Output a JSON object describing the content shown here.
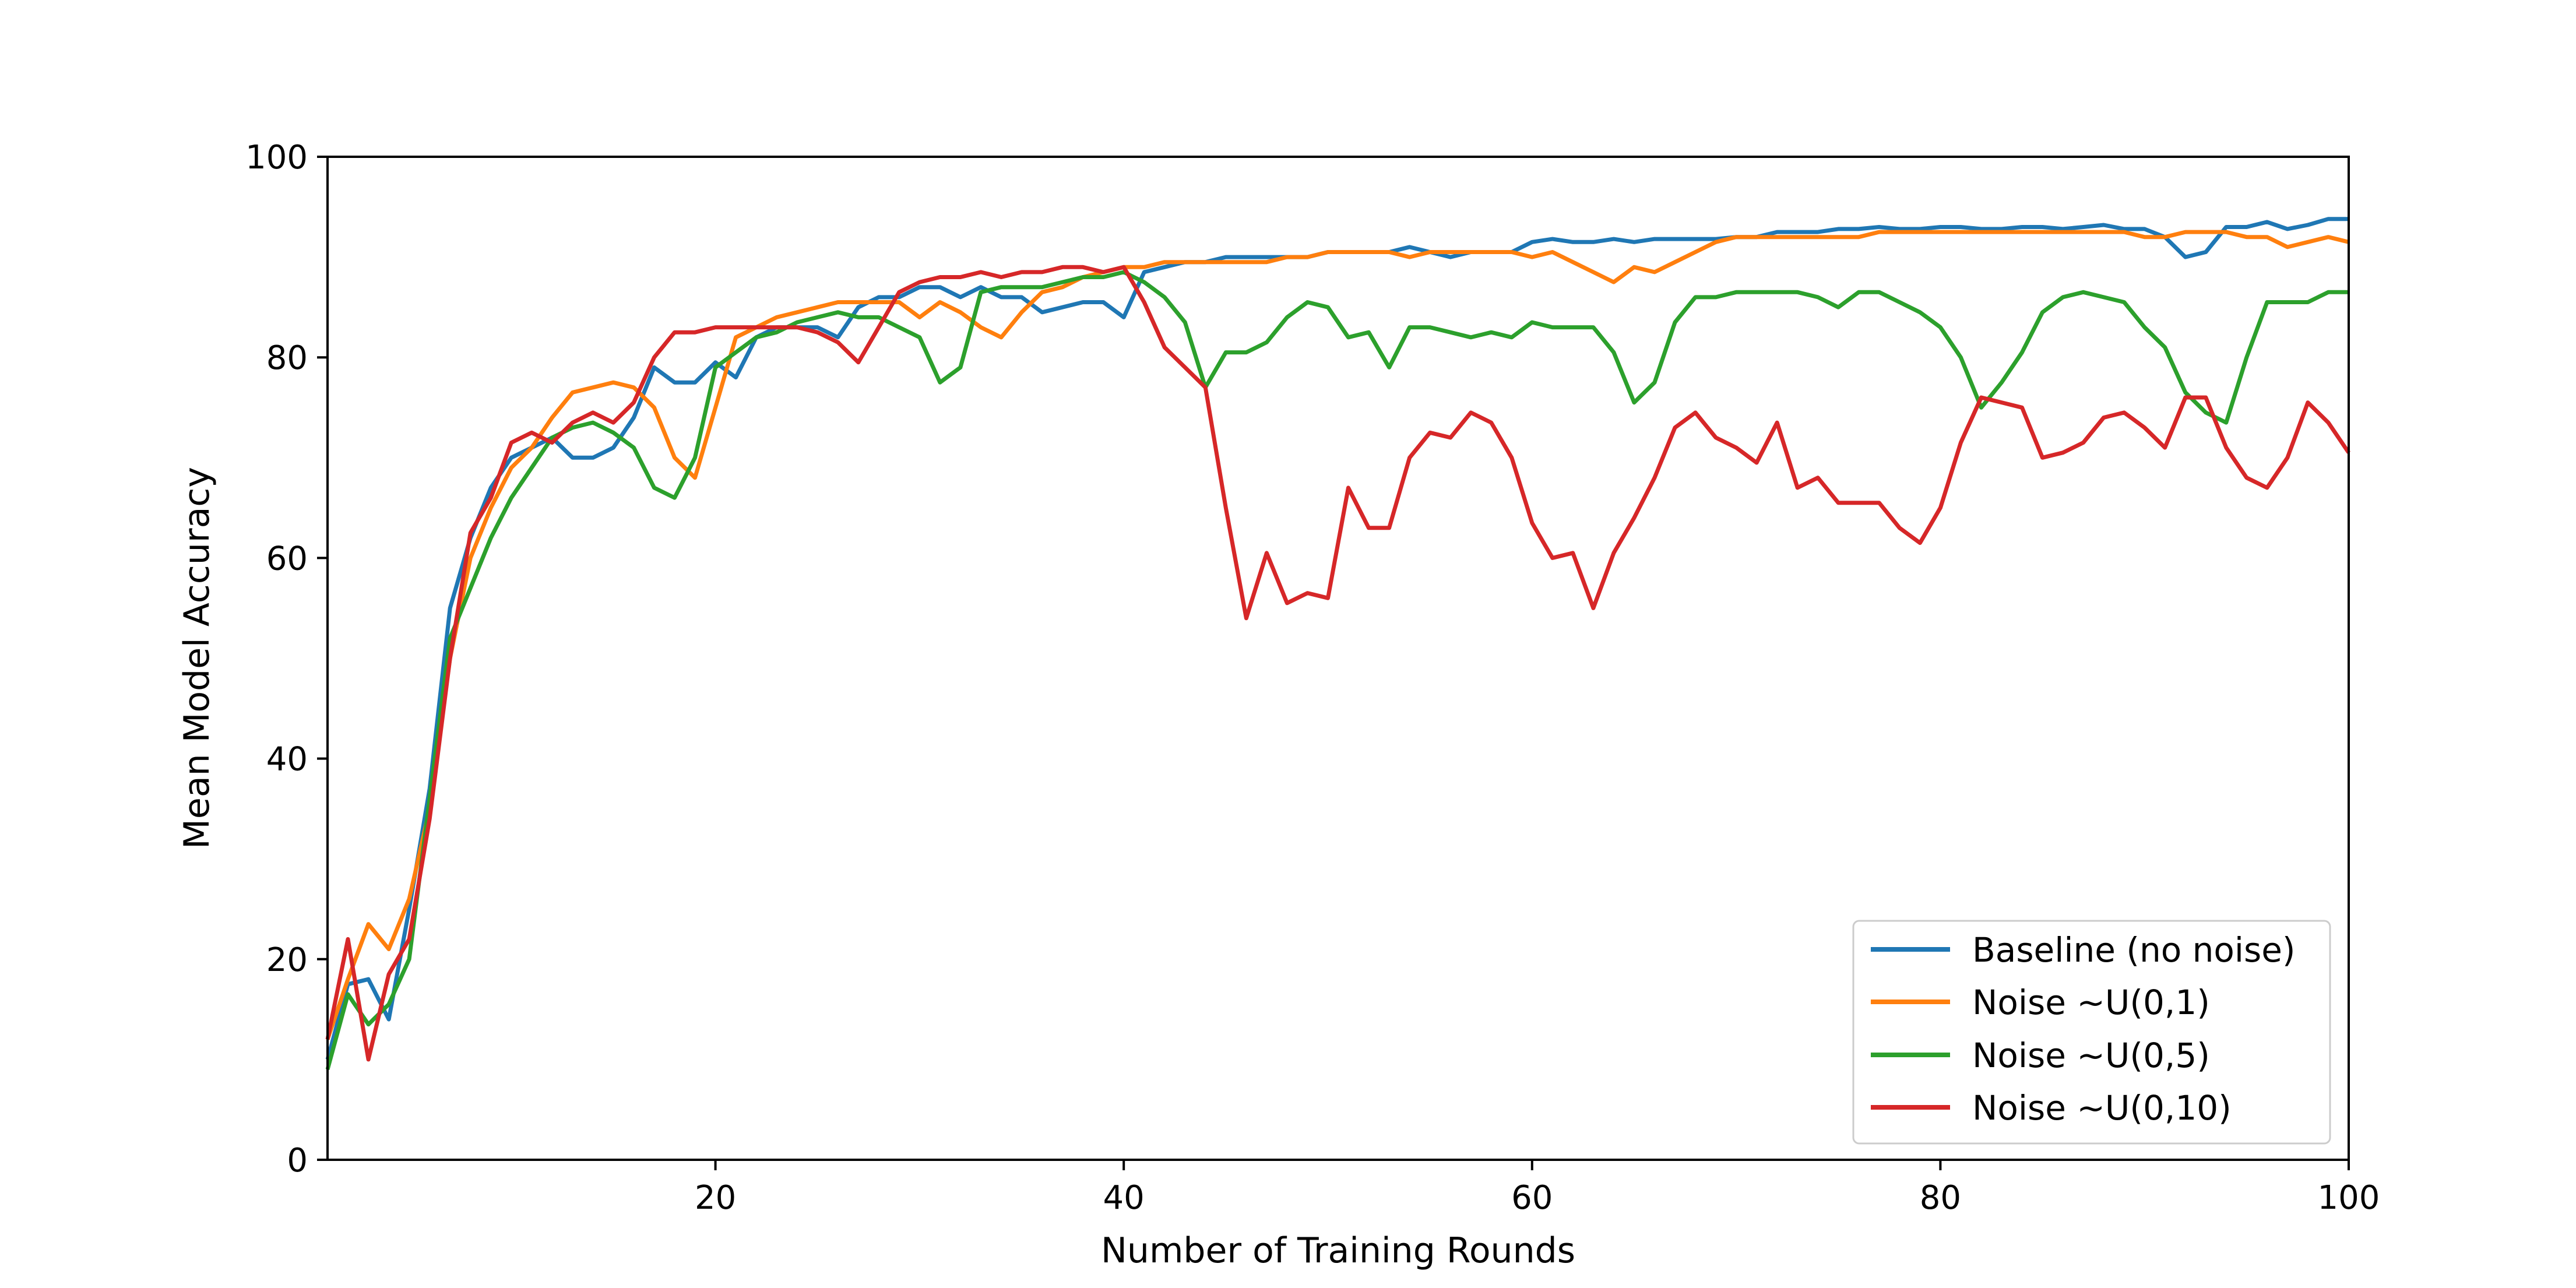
{
  "chart_data": {
    "type": "line",
    "title": "",
    "xlabel": "Number of Training Rounds",
    "ylabel": "Mean Model Accuracy",
    "xlim": [
      1,
      100
    ],
    "ylim": [
      0,
      100
    ],
    "xticks": [
      20,
      40,
      60,
      80,
      100
    ],
    "yticks": [
      0,
      20,
      40,
      60,
      80,
      100
    ],
    "grid": false,
    "legend_position": "lower-right",
    "x": [
      1,
      2,
      3,
      4,
      5,
      6,
      7,
      8,
      9,
      10,
      11,
      12,
      13,
      14,
      15,
      16,
      17,
      18,
      19,
      20,
      21,
      22,
      23,
      24,
      25,
      26,
      27,
      28,
      29,
      30,
      31,
      32,
      33,
      34,
      35,
      36,
      37,
      38,
      39,
      40,
      41,
      42,
      43,
      44,
      45,
      46,
      47,
      48,
      49,
      50,
      51,
      52,
      53,
      54,
      55,
      56,
      57,
      58,
      59,
      60,
      61,
      62,
      63,
      64,
      65,
      66,
      67,
      68,
      69,
      70,
      71,
      72,
      73,
      74,
      75,
      76,
      77,
      78,
      79,
      80,
      81,
      82,
      83,
      84,
      85,
      86,
      87,
      88,
      89,
      90,
      91,
      92,
      93,
      94,
      95,
      96,
      97,
      98,
      99,
      100
    ],
    "series": [
      {
        "name": "Baseline (no noise)",
        "color": "#1f77b4",
        "values": [
          10.0,
          17.5,
          18.0,
          14.0,
          25.0,
          37.0,
          55.0,
          62.0,
          67.0,
          70.0,
          71.0,
          72.0,
          70.0,
          70.0,
          71.0,
          74.0,
          79.0,
          77.5,
          77.5,
          79.5,
          78.0,
          82.0,
          83.0,
          83.0,
          83.0,
          82.0,
          85.0,
          86.0,
          86.0,
          87.0,
          87.0,
          86.0,
          87.0,
          86.0,
          86.0,
          84.5,
          85.0,
          85.5,
          85.5,
          84.0,
          88.5,
          89.0,
          89.5,
          89.5,
          90.0,
          90.0,
          90.0,
          90.0,
          90.0,
          90.5,
          90.5,
          90.5,
          90.5,
          91.0,
          90.5,
          90.0,
          90.5,
          90.5,
          90.5,
          91.5,
          91.8,
          91.5,
          91.5,
          91.8,
          91.5,
          91.8,
          91.8,
          91.8,
          91.8,
          92.0,
          92.0,
          92.5,
          92.5,
          92.5,
          92.8,
          92.8,
          93.0,
          92.8,
          92.8,
          93.0,
          93.0,
          92.8,
          92.8,
          93.0,
          93.0,
          92.8,
          93.0,
          93.2,
          92.8,
          92.8,
          92.0,
          90.0,
          90.5,
          93.0,
          93.0,
          93.5,
          92.8,
          93.2,
          93.8,
          93.8
        ]
      },
      {
        "name": "Noise ~U(0,1)",
        "color": "#ff7f0e",
        "values": [
          12.0,
          18.0,
          23.5,
          21.0,
          26.0,
          35.0,
          50.0,
          60.0,
          65.0,
          69.0,
          71.0,
          74.0,
          76.5,
          77.0,
          77.5,
          77.0,
          75.0,
          70.0,
          68.0,
          75.0,
          82.0,
          83.0,
          84.0,
          84.5,
          85.0,
          85.5,
          85.5,
          85.5,
          85.5,
          84.0,
          85.5,
          84.5,
          83.0,
          82.0,
          84.5,
          86.5,
          87.0,
          88.0,
          88.5,
          89.0,
          89.0,
          89.5,
          89.5,
          89.5,
          89.5,
          89.5,
          89.5,
          90.0,
          90.0,
          90.5,
          90.5,
          90.5,
          90.5,
          90.0,
          90.5,
          90.5,
          90.5,
          90.5,
          90.5,
          90.0,
          90.5,
          89.5,
          88.5,
          87.5,
          89.0,
          88.5,
          89.5,
          90.5,
          91.5,
          92.0,
          92.0,
          92.0,
          92.0,
          92.0,
          92.0,
          92.0,
          92.5,
          92.5,
          92.5,
          92.5,
          92.5,
          92.5,
          92.5,
          92.5,
          92.5,
          92.5,
          92.5,
          92.5,
          92.5,
          92.0,
          92.0,
          92.5,
          92.5,
          92.5,
          92.0,
          92.0,
          91.0,
          91.5,
          92.0,
          91.5
        ]
      },
      {
        "name": "Noise ~U(0,5)",
        "color": "#2ca02c",
        "values": [
          9.0,
          16.5,
          13.5,
          15.5,
          20.0,
          36.0,
          52.0,
          57.0,
          62.0,
          66.0,
          69.0,
          72.0,
          73.0,
          73.5,
          72.5,
          71.0,
          67.0,
          66.0,
          70.0,
          79.0,
          80.5,
          82.0,
          82.5,
          83.5,
          84.0,
          84.5,
          84.0,
          84.0,
          83.0,
          82.0,
          77.5,
          79.0,
          86.5,
          87.0,
          87.0,
          87.0,
          87.5,
          88.0,
          88.0,
          88.5,
          87.5,
          86.0,
          83.5,
          77.0,
          80.5,
          80.5,
          81.5,
          84.0,
          85.5,
          85.0,
          82.0,
          82.5,
          79.0,
          83.0,
          83.0,
          82.5,
          82.0,
          82.5,
          82.0,
          83.5,
          83.0,
          83.0,
          83.0,
          80.5,
          75.5,
          77.5,
          83.5,
          86.0,
          86.0,
          86.5,
          86.5,
          86.5,
          86.5,
          86.0,
          85.0,
          86.5,
          86.5,
          85.5,
          84.5,
          83.0,
          80.0,
          75.0,
          77.5,
          80.5,
          84.5,
          86.0,
          86.5,
          86.0,
          85.5,
          83.0,
          81.0,
          76.5,
          74.5,
          73.5,
          80.0,
          85.5,
          85.5,
          85.5,
          86.5,
          86.5
        ]
      },
      {
        "name": "Noise ~U(0,10)",
        "color": "#d62728",
        "values": [
          12.0,
          22.0,
          10.0,
          18.5,
          22.0,
          34.0,
          50.0,
          62.5,
          66.0,
          71.5,
          72.5,
          71.5,
          73.5,
          74.5,
          73.5,
          75.5,
          80.0,
          82.5,
          82.5,
          83.0,
          83.0,
          83.0,
          83.0,
          83.0,
          82.5,
          81.5,
          79.5,
          83.0,
          86.5,
          87.5,
          88.0,
          88.0,
          88.5,
          88.0,
          88.5,
          88.5,
          89.0,
          89.0,
          88.5,
          89.0,
          85.5,
          81.0,
          79.0,
          77.0,
          65.0,
          54.0,
          60.5,
          55.5,
          56.5,
          56.0,
          67.0,
          63.0,
          63.0,
          70.0,
          72.5,
          72.0,
          74.5,
          73.5,
          70.0,
          63.5,
          60.0,
          60.5,
          55.0,
          60.5,
          64.0,
          68.0,
          73.0,
          74.5,
          72.0,
          71.0,
          69.5,
          73.5,
          67.0,
          68.0,
          65.5,
          65.5,
          65.5,
          63.0,
          61.5,
          65.0,
          71.5,
          76.0,
          75.5,
          75.0,
          70.0,
          70.5,
          71.5,
          74.0,
          74.5,
          73.0,
          71.0,
          76.0,
          76.0,
          71.0,
          68.0,
          67.0,
          70.0,
          75.5,
          73.5,
          70.5
        ]
      }
    ]
  }
}
